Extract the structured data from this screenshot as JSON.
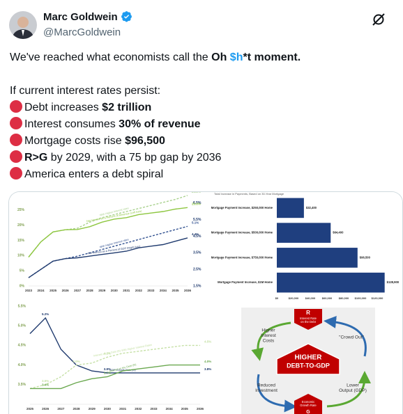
{
  "header": {
    "name": "Marc Goldwein",
    "handle": "@MarcGoldwein"
  },
  "tweet": {
    "headline": [
      {
        "text": "We've reached what economists call the "
      },
      {
        "text": "Oh ",
        "bold": true
      },
      {
        "text": "$h",
        "bold": true,
        "link": true
      },
      {
        "text": "*t moment.",
        "bold": true
      }
    ],
    "intro": "If current interest rates persist:",
    "bullets": [
      [
        {
          "text": "Debt increases "
        },
        {
          "text": "$2 trillion",
          "bold": true
        }
      ],
      [
        {
          "text": "Interest consumes "
        },
        {
          "text": "30% of revenue",
          "bold": true
        }
      ],
      [
        {
          "text": "Mortgage costs rise "
        },
        {
          "text": "$96,500",
          "bold": true
        }
      ],
      [
        {
          "text": "R>G",
          "bold": true
        },
        {
          "text": " by 2029, with a 75 bp gap by 2036"
        }
      ],
      [
        {
          "text": "America enters a debt spiral"
        }
      ]
    ]
  },
  "chart_data": [
    {
      "type": "line",
      "categories": [
        "2023",
        "2024",
        "2025",
        "2026",
        "2027",
        "2028",
        "2029",
        "2030",
        "2031",
        "2032",
        "2033",
        "2034",
        "2035",
        "2036"
      ],
      "ylim": [
        0,
        30
      ],
      "yticks": [
        {
          "value": 0,
          "label": "0%"
        },
        {
          "value": 5,
          "label": "5%"
        },
        {
          "value": 10,
          "label": "10%"
        },
        {
          "value": 15,
          "label": "15%"
        },
        {
          "value": 20,
          "label": "20%"
        },
        {
          "value": 25,
          "label": "25%"
        }
      ],
      "y2lim": [
        1.5,
        7
      ],
      "y2ticks": [
        {
          "value": 1.5,
          "label": "1.5%"
        },
        {
          "value": 2.5,
          "label": "2.5%"
        },
        {
          "value": 3.5,
          "label": "3.5%"
        },
        {
          "value": 4.5,
          "label": "4.5%"
        },
        {
          "value": 5.5,
          "label": "5.5%"
        },
        {
          "value": 6.5,
          "label": "6.5%"
        }
      ],
      "series": [
        {
          "name": "With Higher Interest rates",
          "color": "#a9d18e",
          "dash": true,
          "values": [
            9.5,
            14.5,
            17.8,
            18.5,
            19,
            21,
            22.5,
            23.5,
            24.5,
            25.5,
            26.5,
            27.5,
            28.5,
            29.8
          ],
          "value_labels": [
            null,
            null,
            null,
            null,
            null,
            null,
            null,
            null,
            null,
            null,
            null,
            null,
            null,
            "29.8%"
          ]
        },
        {
          "name": "Net Interest as a Percent of Revenue (Left Axis)",
          "color": "#8dc63f",
          "values": [
            9.5,
            14.5,
            17.8,
            18.5,
            18.6,
            19.5,
            21,
            22,
            22.5,
            23.5,
            24,
            24.5,
            25.3,
            25.8
          ],
          "value_labels": [
            null,
            null,
            null,
            null,
            null,
            null,
            null,
            null,
            null,
            null,
            null,
            null,
            null,
            "25.8%"
          ]
        },
        {
          "name": "With Higher Interest rates",
          "color": "#2f4f8f",
          "dash": true,
          "axis": "y2",
          "values": [
            2.0,
            2.5,
            3.0,
            3.15,
            3.3,
            3.5,
            3.7,
            3.9,
            4.1,
            4.3,
            4.5,
            4.7,
            4.9,
            5.1
          ],
          "value_labels": [
            null,
            null,
            null,
            null,
            null,
            null,
            null,
            null,
            null,
            null,
            null,
            null,
            null,
            "5.1%"
          ]
        },
        {
          "name": "Net Interest as a Percent of GDP (Right Axis)",
          "color": "#1f3a6e",
          "axis": "y2",
          "values": [
            2.0,
            2.5,
            3.0,
            3.15,
            3.2,
            3.3,
            3.4,
            3.5,
            3.6,
            3.8,
            3.9,
            4.0,
            4.2,
            4.4
          ],
          "value_labels": [
            null,
            null,
            null,
            null,
            null,
            null,
            null,
            null,
            null,
            null,
            null,
            null,
            null,
            "4.4%"
          ]
        }
      ]
    },
    {
      "type": "barh",
      "title": "Total Increase in Payments, Based on 30-Year Mortgage",
      "categories": [
        "Mortgage Payment Increase, $250,000 Home",
        "Mortgage Payment Increase, $500,000 Home",
        "Mortgage Payment Increase, $750,000 Home",
        "Mortgage Payment Increase, $1M Home"
      ],
      "values": [
        32400,
        64400,
        96500,
        128900
      ],
      "value_labels": [
        "$32,400",
        "$64,400",
        "$96,500",
        "$128,900"
      ],
      "color": "#1f3f7f",
      "xlim": [
        0,
        130000
      ],
      "xticks": [
        {
          "value": 0,
          "label": "$0"
        },
        {
          "value": 20000,
          "label": "$20,000"
        },
        {
          "value": 40000,
          "label": "$40,000"
        },
        {
          "value": 60000,
          "label": "$60,000"
        },
        {
          "value": 80000,
          "label": "$80,000"
        },
        {
          "value": 100000,
          "label": "$100,000"
        },
        {
          "value": 120000,
          "label": "$120,000"
        }
      ]
    },
    {
      "type": "line",
      "categories": [
        "2025",
        "2026",
        "2027",
        "2028",
        "2029",
        "2030",
        "2031",
        "2032",
        "2033",
        "2034",
        "2035",
        "2036"
      ],
      "ylim": [
        3.0,
        5.5
      ],
      "yticks": [
        {
          "value": 3.5,
          "label": "3.5%"
        },
        {
          "value": 4.0,
          "label": "4.0%"
        },
        {
          "value": 4.5,
          "label": "4.5%"
        },
        {
          "value": 5.0,
          "label": "5.0%"
        },
        {
          "value": 5.5,
          "label": "5.5%"
        }
      ],
      "series": [
        {
          "name": "GDP Growth Rate (G)",
          "color": "#1f3a6e",
          "values": [
            4.8,
            5.2,
            4.4,
            4.0,
            3.85,
            3.8,
            3.8,
            3.8,
            3.8,
            3.8,
            3.8,
            3.8
          ],
          "value_labels": [
            null,
            "5.2%",
            null,
            null,
            null,
            "3.8%",
            null,
            null,
            null,
            null,
            null,
            "3.8%"
          ]
        },
        {
          "name": "Interest on the Debt (R) With Higher Interest Rates",
          "color": "#c5e0a5",
          "dash": true,
          "values": [
            3.4,
            3.5,
            3.7,
            4.0,
            4.05,
            4.2,
            4.3,
            4.35,
            4.4,
            4.45,
            4.5,
            4.5
          ],
          "value_labels": [
            null,
            "3.5%",
            null,
            "4.0%",
            null,
            "4.2%",
            null,
            null,
            null,
            null,
            null,
            "4.5%"
          ]
        },
        {
          "name": "Interest on the Debt (R)",
          "color": "#6aa84f",
          "values": [
            3.4,
            3.4,
            3.4,
            3.55,
            3.65,
            3.7,
            3.85,
            3.9,
            3.95,
            4.0,
            4.0,
            4.0
          ],
          "value_labels": [
            null,
            "3.4%",
            null,
            null,
            null,
            "3.7%",
            null,
            null,
            null,
            null,
            null,
            "4.0%"
          ]
        }
      ]
    }
  ],
  "diagram": {
    "top_letter": "R",
    "top_label": [
      "Interest Rate",
      "on the Debt"
    ],
    "nodes": [
      [
        "Higher",
        "Interest",
        "Costs"
      ],
      [
        "\"Crowd Out\""
      ],
      [
        "Reduced",
        "Investment"
      ],
      [
        "Lower",
        "Output (GDP)"
      ]
    ],
    "center": [
      "HIGHER",
      "DEBT-TO-GDP"
    ],
    "bottom_label": [
      "Economic",
      "Growth Rate"
    ],
    "bottom_letter": "G"
  }
}
